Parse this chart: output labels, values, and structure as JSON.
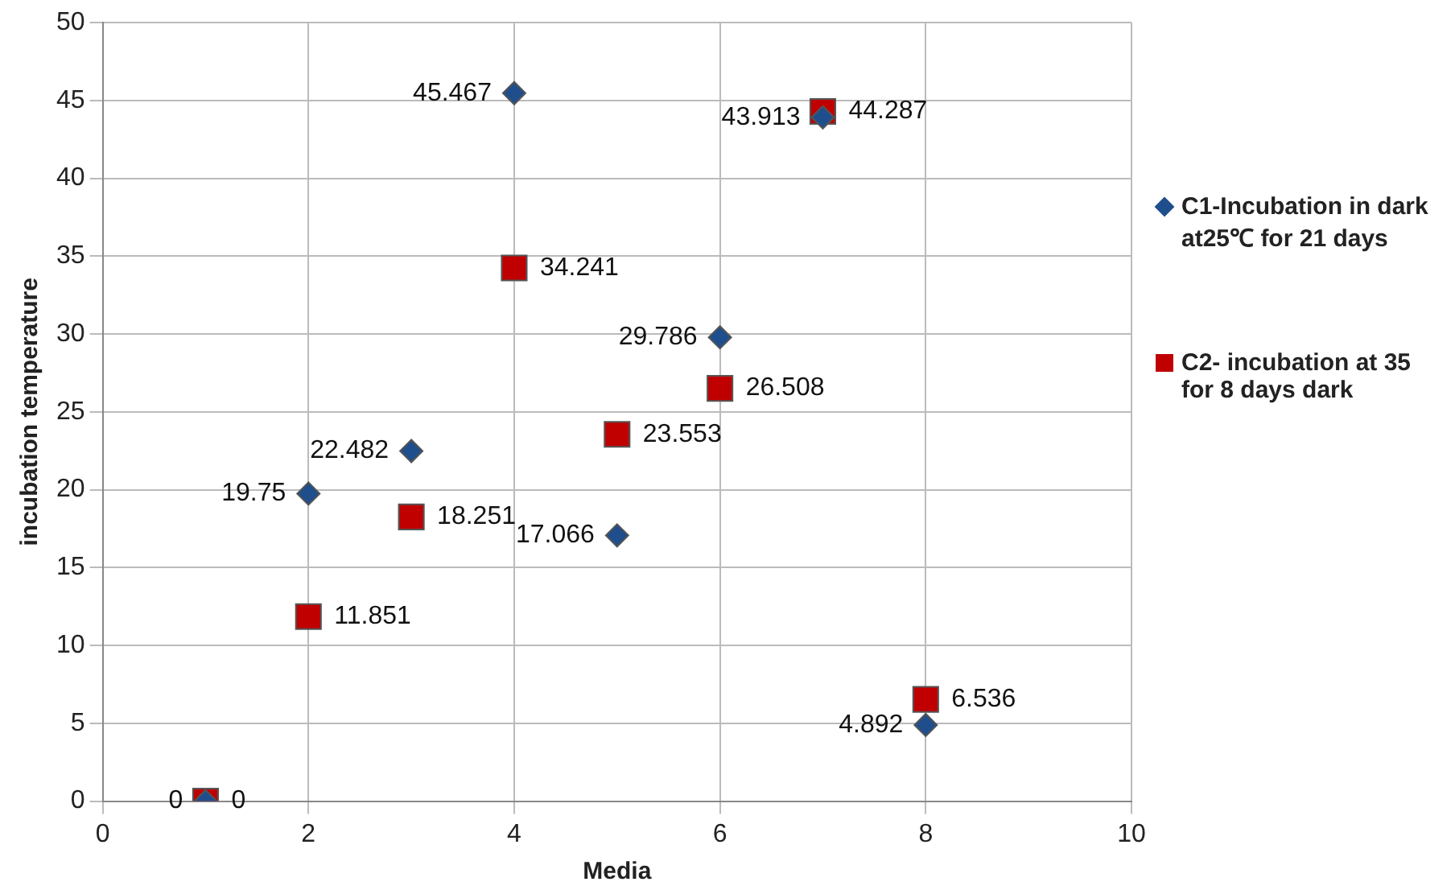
{
  "chart_data": {
    "type": "scatter",
    "xlabel": "Media",
    "ylabel": "incubation temperature",
    "xlim": [
      0,
      10
    ],
    "xticks": [
      0,
      2,
      4,
      6,
      8,
      10
    ],
    "ylim": [
      0,
      50
    ],
    "yticks": [
      0,
      5,
      10,
      15,
      20,
      25,
      30,
      35,
      40,
      45,
      50
    ],
    "grid": true,
    "legend": "right",
    "data_labels": true,
    "series": [
      {
        "name": "C1-Incubation in dark at25℃ for 21 days",
        "color": "#1f4e8c",
        "marker": "diamond",
        "x": [
          1,
          2,
          3,
          4,
          5,
          6,
          7,
          8
        ],
        "values": [
          0,
          19.75,
          22.482,
          45.467,
          17.066,
          29.786,
          43.913,
          4.892
        ]
      },
      {
        "name": "C2- incubation at 35 for 8 days dark",
        "color": "#c00000",
        "marker": "square",
        "x": [
          1,
          2,
          3,
          4,
          5,
          6,
          7,
          8
        ],
        "values": [
          0,
          11.851,
          18.251,
          34.241,
          23.553,
          26.508,
          44.287,
          6.536
        ]
      }
    ]
  }
}
